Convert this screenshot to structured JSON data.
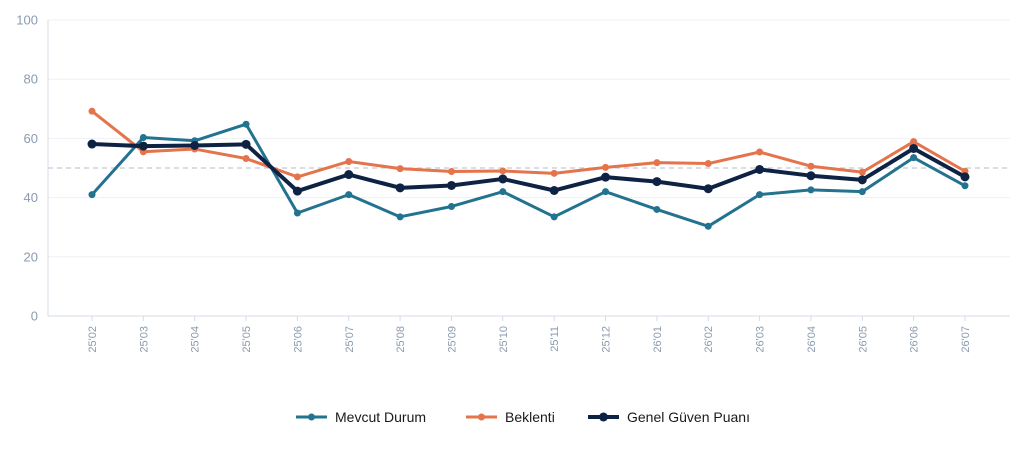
{
  "chart_data": {
    "type": "line",
    "x": [
      "25'02",
      "25'03",
      "25'04",
      "25'05",
      "25'06",
      "25'07",
      "25'08",
      "25'09",
      "25'10",
      "25'11",
      "25'12",
      "26'01",
      "26'02",
      "26'03",
      "26'04",
      "26'05",
      "26'06",
      "26'07"
    ],
    "ylim": [
      0,
      100
    ],
    "yticks": [
      0,
      20,
      40,
      60,
      80,
      100
    ],
    "reference_line": 50,
    "grid": true,
    "legend_position": "bottom",
    "series": [
      {
        "name": "Mevcut Durum",
        "color": "#23728f",
        "values": [
          41,
          60.3,
          59.2,
          64.8,
          34.8,
          41,
          33.5,
          37,
          42,
          33.5,
          42,
          36,
          30.3,
          41,
          42.6,
          42,
          53.5,
          44
        ]
      },
      {
        "name": "Beklenti",
        "color": "#e4744b",
        "values": [
          69.2,
          55.5,
          56.4,
          53.2,
          47,
          52.2,
          49.8,
          48.8,
          49,
          48.2,
          50.2,
          51.8,
          51.5,
          55.4,
          50.6,
          48.6,
          58.9,
          48.9
        ]
      },
      {
        "name": "Genel Güven Puanı",
        "color": "#0e2344",
        "values": [
          58.1,
          57.4,
          57.6,
          58.0,
          42.2,
          47.8,
          43.3,
          44.1,
          46.3,
          42.4,
          46.9,
          45.4,
          43,
          49.5,
          47.4,
          46,
          56.6,
          47
        ]
      }
    ]
  }
}
